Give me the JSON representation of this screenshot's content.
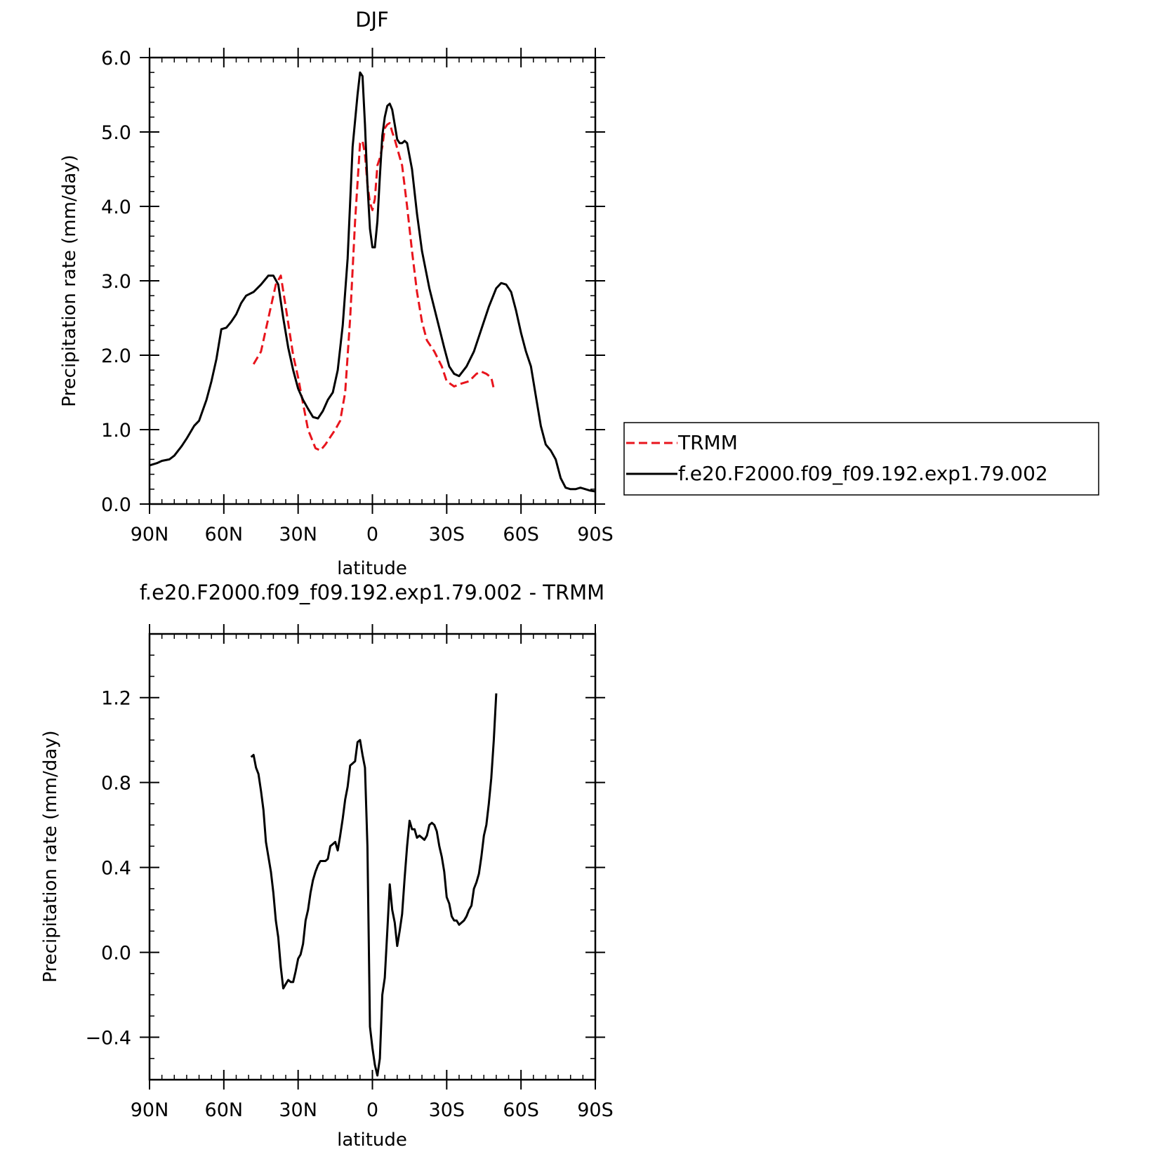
{
  "chart_data": [
    {
      "type": "line",
      "title": "DJF",
      "xlabel": "latitude",
      "ylabel": "Precipitation rate (mm/day)",
      "xlim": [
        -90,
        90
      ],
      "ylim": [
        0,
        6
      ],
      "x_ticks": [
        {
          "value": -90,
          "label": "90N"
        },
        {
          "value": -60,
          "label": "60N"
        },
        {
          "value": -30,
          "label": "30N"
        },
        {
          "value": 0,
          "label": "0"
        },
        {
          "value": 30,
          "label": "30S"
        },
        {
          "value": 60,
          "label": "60S"
        },
        {
          "value": 90,
          "label": "90S"
        }
      ],
      "y_ticks": [
        {
          "value": 0,
          "label": "0.0"
        },
        {
          "value": 1,
          "label": "1.0"
        },
        {
          "value": 2,
          "label": "2.0"
        },
        {
          "value": 3,
          "label": "3.0"
        },
        {
          "value": 4,
          "label": "4.0"
        },
        {
          "value": 5,
          "label": "5.0"
        },
        {
          "value": 6,
          "label": "6.0"
        }
      ],
      "grid": false,
      "legend": {
        "placement": "right",
        "entries": [
          {
            "name": "TRMM",
            "color": "#e8141c",
            "dash": "dashed"
          },
          {
            "name": "f.e20.F2000.f09_f09.192.exp1.79.002",
            "color": "#000000",
            "dash": "solid"
          }
        ]
      },
      "series": [
        {
          "name": "TRMM",
          "color": "#e8141c",
          "points": [
            [
              -48,
              1.88
            ],
            [
              -45,
              2.05
            ],
            [
              -42,
              2.5
            ],
            [
              -39,
              2.95
            ],
            [
              -37,
              3.07
            ],
            [
              -35,
              2.65
            ],
            [
              -32,
              2.0
            ],
            [
              -30,
              1.7
            ],
            [
              -28,
              1.35
            ],
            [
              -26,
              1.0
            ],
            [
              -23,
              0.75
            ],
            [
              -21,
              0.72
            ],
            [
              -19,
              0.8
            ],
            [
              -17,
              0.9
            ],
            [
              -15,
              1.0
            ],
            [
              -13,
              1.12
            ],
            [
              -11,
              1.5
            ],
            [
              -9,
              2.5
            ],
            [
              -7,
              3.8
            ],
            [
              -5,
              4.85
            ],
            [
              -4,
              4.88
            ],
            [
              -3,
              4.7
            ],
            [
              -2,
              4.3
            ],
            [
              -1,
              4.05
            ],
            [
              0,
              3.95
            ],
            [
              1,
              4.1
            ],
            [
              2,
              4.55
            ],
            [
              3,
              4.65
            ],
            [
              4,
              4.8
            ],
            [
              5,
              5.05
            ],
            [
              6,
              5.1
            ],
            [
              7,
              5.12
            ],
            [
              8,
              5.0
            ],
            [
              9,
              4.9
            ],
            [
              10,
              4.78
            ],
            [
              12,
              4.55
            ],
            [
              14,
              4.0
            ],
            [
              16,
              3.4
            ],
            [
              18,
              2.85
            ],
            [
              20,
              2.45
            ],
            [
              22,
              2.2
            ],
            [
              25,
              2.05
            ],
            [
              28,
              1.85
            ],
            [
              30,
              1.65
            ],
            [
              33,
              1.58
            ],
            [
              36,
              1.62
            ],
            [
              39,
              1.65
            ],
            [
              42,
              1.75
            ],
            [
              44,
              1.78
            ],
            [
              46,
              1.75
            ],
            [
              48,
              1.7
            ],
            [
              49,
              1.55
            ]
          ]
        },
        {
          "name": "f.e20.F2000.f09_f09.192.exp1.79.002",
          "color": "#000000",
          "points": [
            [
              -90,
              0.52
            ],
            [
              -87,
              0.55
            ],
            [
              -85,
              0.58
            ],
            [
              -82,
              0.6
            ],
            [
              -80,
              0.65
            ],
            [
              -77,
              0.78
            ],
            [
              -75,
              0.88
            ],
            [
              -72,
              1.05
            ],
            [
              -70,
              1.12
            ],
            [
              -67,
              1.4
            ],
            [
              -65,
              1.65
            ],
            [
              -63,
              1.95
            ],
            [
              -61,
              2.35
            ],
            [
              -59,
              2.37
            ],
            [
              -57,
              2.45
            ],
            [
              -55,
              2.55
            ],
            [
              -53,
              2.7
            ],
            [
              -51,
              2.8
            ],
            [
              -48,
              2.85
            ],
            [
              -45,
              2.95
            ],
            [
              -42,
              3.07
            ],
            [
              -40,
              3.07
            ],
            [
              -38,
              2.95
            ],
            [
              -36,
              2.5
            ],
            [
              -34,
              2.1
            ],
            [
              -32,
              1.8
            ],
            [
              -30,
              1.55
            ],
            [
              -28,
              1.4
            ],
            [
              -26,
              1.28
            ],
            [
              -24,
              1.17
            ],
            [
              -22,
              1.15
            ],
            [
              -20,
              1.25
            ],
            [
              -18,
              1.4
            ],
            [
              -16,
              1.5
            ],
            [
              -14,
              1.8
            ],
            [
              -12,
              2.4
            ],
            [
              -10,
              3.3
            ],
            [
              -8,
              4.8
            ],
            [
              -6,
              5.5
            ],
            [
              -5,
              5.8
            ],
            [
              -4,
              5.75
            ],
            [
              -3,
              5.1
            ],
            [
              -2,
              4.3
            ],
            [
              -1,
              3.7
            ],
            [
              0,
              3.45
            ],
            [
              1,
              3.45
            ],
            [
              2,
              3.8
            ],
            [
              3,
              4.4
            ],
            [
              4,
              4.95
            ],
            [
              5,
              5.2
            ],
            [
              6,
              5.35
            ],
            [
              7,
              5.38
            ],
            [
              8,
              5.3
            ],
            [
              9,
              5.1
            ],
            [
              10,
              4.9
            ],
            [
              11,
              4.85
            ],
            [
              12,
              4.85
            ],
            [
              13,
              4.88
            ],
            [
              14,
              4.85
            ],
            [
              16,
              4.5
            ],
            [
              18,
              3.9
            ],
            [
              20,
              3.4
            ],
            [
              23,
              2.9
            ],
            [
              26,
              2.5
            ],
            [
              29,
              2.1
            ],
            [
              31,
              1.85
            ],
            [
              33,
              1.75
            ],
            [
              35,
              1.72
            ],
            [
              38,
              1.85
            ],
            [
              41,
              2.05
            ],
            [
              44,
              2.35
            ],
            [
              47,
              2.65
            ],
            [
              50,
              2.9
            ],
            [
              52,
              2.97
            ],
            [
              54,
              2.95
            ],
            [
              56,
              2.85
            ],
            [
              58,
              2.6
            ],
            [
              60,
              2.3
            ],
            [
              62,
              2.05
            ],
            [
              64,
              1.85
            ],
            [
              66,
              1.45
            ],
            [
              68,
              1.05
            ],
            [
              70,
              0.8
            ],
            [
              72,
              0.72
            ],
            [
              74,
              0.6
            ],
            [
              76,
              0.35
            ],
            [
              78,
              0.22
            ],
            [
              80,
              0.2
            ],
            [
              82,
              0.2
            ],
            [
              84,
              0.22
            ],
            [
              86,
              0.2
            ],
            [
              88,
              0.18
            ],
            [
              90,
              0.17
            ]
          ]
        }
      ]
    },
    {
      "type": "line",
      "title": "f.e20.F2000.f09_f09.192.exp1.79.002 - TRMM",
      "xlabel": "latitude",
      "ylabel": "Precipitation rate (mm/day)",
      "xlim": [
        -90,
        90
      ],
      "ylim": [
        -0.6,
        1.5
      ],
      "x_ticks": [
        {
          "value": -90,
          "label": "90N"
        },
        {
          "value": -60,
          "label": "60N"
        },
        {
          "value": -30,
          "label": "30N"
        },
        {
          "value": 0,
          "label": "0"
        },
        {
          "value": 30,
          "label": "30S"
        },
        {
          "value": 60,
          "label": "60S"
        },
        {
          "value": 90,
          "label": "90S"
        }
      ],
      "y_ticks": [
        {
          "value": -0.4,
          "label": "−0.4"
        },
        {
          "value": 0.0,
          "label": "0.0"
        },
        {
          "value": 0.4,
          "label": "0.4"
        },
        {
          "value": 0.8,
          "label": "0.8"
        },
        {
          "value": 1.2,
          "label": "1.2"
        }
      ],
      "grid": false,
      "series": [
        {
          "color": "#000000",
          "points": [
            [
              -49,
              0.92
            ],
            [
              -48,
              0.93
            ],
            [
              -47,
              0.87
            ],
            [
              -46,
              0.84
            ],
            [
              -45,
              0.76
            ],
            [
              -44,
              0.67
            ],
            [
              -43,
              0.52
            ],
            [
              -41,
              0.38
            ],
            [
              -40,
              0.28
            ],
            [
              -39,
              0.15
            ],
            [
              -38,
              0.07
            ],
            [
              -37,
              -0.07
            ],
            [
              -36,
              -0.17
            ],
            [
              -35,
              -0.15
            ],
            [
              -34,
              -0.13
            ],
            [
              -33,
              -0.14
            ],
            [
              -32,
              -0.14
            ],
            [
              -31,
              -0.09
            ],
            [
              -30,
              -0.03
            ],
            [
              -29,
              -0.01
            ],
            [
              -28,
              0.04
            ],
            [
              -27,
              0.15
            ],
            [
              -26,
              0.2
            ],
            [
              -25,
              0.28
            ],
            [
              -24,
              0.34
            ],
            [
              -23,
              0.38
            ],
            [
              -22,
              0.41
            ],
            [
              -21,
              0.43
            ],
            [
              -20,
              0.43
            ],
            [
              -19,
              0.43
            ],
            [
              -18,
              0.44
            ],
            [
              -17,
              0.5
            ],
            [
              -16,
              0.51
            ],
            [
              -15,
              0.52
            ],
            [
              -14,
              0.48
            ],
            [
              -13,
              0.55
            ],
            [
              -12,
              0.63
            ],
            [
              -11,
              0.72
            ],
            [
              -10,
              0.78
            ],
            [
              -9,
              0.88
            ],
            [
              -8,
              0.89
            ],
            [
              -7,
              0.9
            ],
            [
              -6,
              0.99
            ],
            [
              -5,
              1.0
            ],
            [
              -4,
              0.93
            ],
            [
              -3,
              0.87
            ],
            [
              -2,
              0.5
            ],
            [
              -1,
              -0.35
            ],
            [
              0,
              -0.45
            ],
            [
              1,
              -0.53
            ],
            [
              2,
              -0.58
            ],
            [
              3,
              -0.5
            ],
            [
              4,
              -0.2
            ],
            [
              5,
              -0.12
            ],
            [
              6,
              0.1
            ],
            [
              7,
              0.32
            ],
            [
              8,
              0.2
            ],
            [
              9,
              0.14
            ],
            [
              10,
              0.03
            ],
            [
              11,
              0.1
            ],
            [
              12,
              0.18
            ],
            [
              13,
              0.35
            ],
            [
              14,
              0.5
            ],
            [
              15,
              0.62
            ],
            [
              16,
              0.58
            ],
            [
              17,
              0.58
            ],
            [
              18,
              0.54
            ],
            [
              19,
              0.55
            ],
            [
              20,
              0.54
            ],
            [
              21,
              0.53
            ],
            [
              22,
              0.55
            ],
            [
              23,
              0.6
            ],
            [
              24,
              0.61
            ],
            [
              25,
              0.6
            ],
            [
              26,
              0.57
            ],
            [
              27,
              0.5
            ],
            [
              28,
              0.45
            ],
            [
              29,
              0.38
            ],
            [
              30,
              0.26
            ],
            [
              31,
              0.23
            ],
            [
              32,
              0.17
            ],
            [
              33,
              0.15
            ],
            [
              34,
              0.15
            ],
            [
              35,
              0.13
            ],
            [
              36,
              0.14
            ],
            [
              37,
              0.15
            ],
            [
              38,
              0.17
            ],
            [
              39,
              0.2
            ],
            [
              40,
              0.22
            ],
            [
              41,
              0.3
            ],
            [
              42,
              0.33
            ],
            [
              43,
              0.37
            ],
            [
              44,
              0.45
            ],
            [
              45,
              0.55
            ],
            [
              46,
              0.6
            ],
            [
              47,
              0.7
            ],
            [
              48,
              0.82
            ],
            [
              49,
              1.0
            ],
            [
              50,
              1.22
            ]
          ]
        }
      ]
    }
  ]
}
